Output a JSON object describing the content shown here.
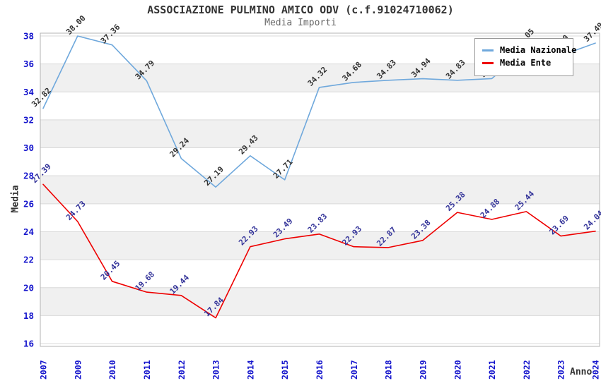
{
  "title": "ASSOCIAZIONE PULMINO AMICO ODV (c.f.91024710062)",
  "subtitle": "Media Importi",
  "legend": {
    "items": [
      {
        "label": "Media Nazionale",
        "color": "#6fa8dc"
      },
      {
        "label": "Media Ente",
        "color": "#ee0000"
      }
    ]
  },
  "axes": {
    "x_title": "Anno",
    "y_title": "Media"
  },
  "colors": {
    "tick_label": "#1414cc",
    "band": "#f0f0f0",
    "gridline": "#d9d9d9",
    "plot_border": "#b3b3b3",
    "title": "#333333",
    "subtitle": "#666666"
  },
  "chart_data": {
    "type": "line",
    "title": "ASSOCIAZIONE PULMINO AMICO ODV (c.f.91024710062)",
    "subtitle": "Media Importi",
    "xlabel": "Anno",
    "ylabel": "Media",
    "x": [
      "2007",
      "2009",
      "2010",
      "2011",
      "2012",
      "2013",
      "2014",
      "2015",
      "2016",
      "2017",
      "2018",
      "2019",
      "2020",
      "2021",
      "2022",
      "2023",
      "2024"
    ],
    "series": [
      {
        "name": "Media Nazionale",
        "color": "#6fa8dc",
        "label_color": "#333333",
        "values": [
          32.82,
          38.0,
          37.36,
          34.79,
          29.24,
          27.19,
          29.43,
          27.71,
          34.32,
          34.68,
          34.83,
          34.94,
          34.83,
          34.95,
          37.05,
          36.6,
          37.49
        ],
        "labels": [
          "32.82",
          "38.00",
          "37.36",
          "34.79",
          "29.24",
          "27.19",
          "29.43",
          "27.71",
          "34.32",
          "34.68",
          "34.83",
          "34.94",
          "34.83",
          "34.95",
          "37.05",
          "36.60",
          "37.49"
        ]
      },
      {
        "name": "Media Ente",
        "color": "#ee0000",
        "label_color": "#333399",
        "values": [
          27.39,
          24.73,
          20.45,
          19.68,
          19.44,
          17.84,
          22.93,
          23.49,
          23.83,
          22.93,
          22.87,
          23.38,
          25.38,
          24.88,
          25.44,
          23.69,
          24.04
        ],
        "labels": [
          "27.39",
          "24.73",
          "20.45",
          "19.68",
          "19.44",
          "17.84",
          "22.93",
          "23.49",
          "23.83",
          "22.93",
          "22.87",
          "23.38",
          "25.38",
          "24.88",
          "25.44",
          "23.69",
          "24.04"
        ]
      }
    ],
    "ylim": [
      15.8,
      38.2
    ],
    "yticks": [
      16,
      18,
      20,
      22,
      24,
      26,
      28,
      30,
      32,
      34,
      36,
      38
    ],
    "bands_gray": [
      [
        18,
        20
      ],
      [
        22,
        24
      ],
      [
        26,
        28
      ],
      [
        30,
        32
      ],
      [
        34,
        36
      ]
    ],
    "grid": true,
    "legend_position": "top-right"
  }
}
